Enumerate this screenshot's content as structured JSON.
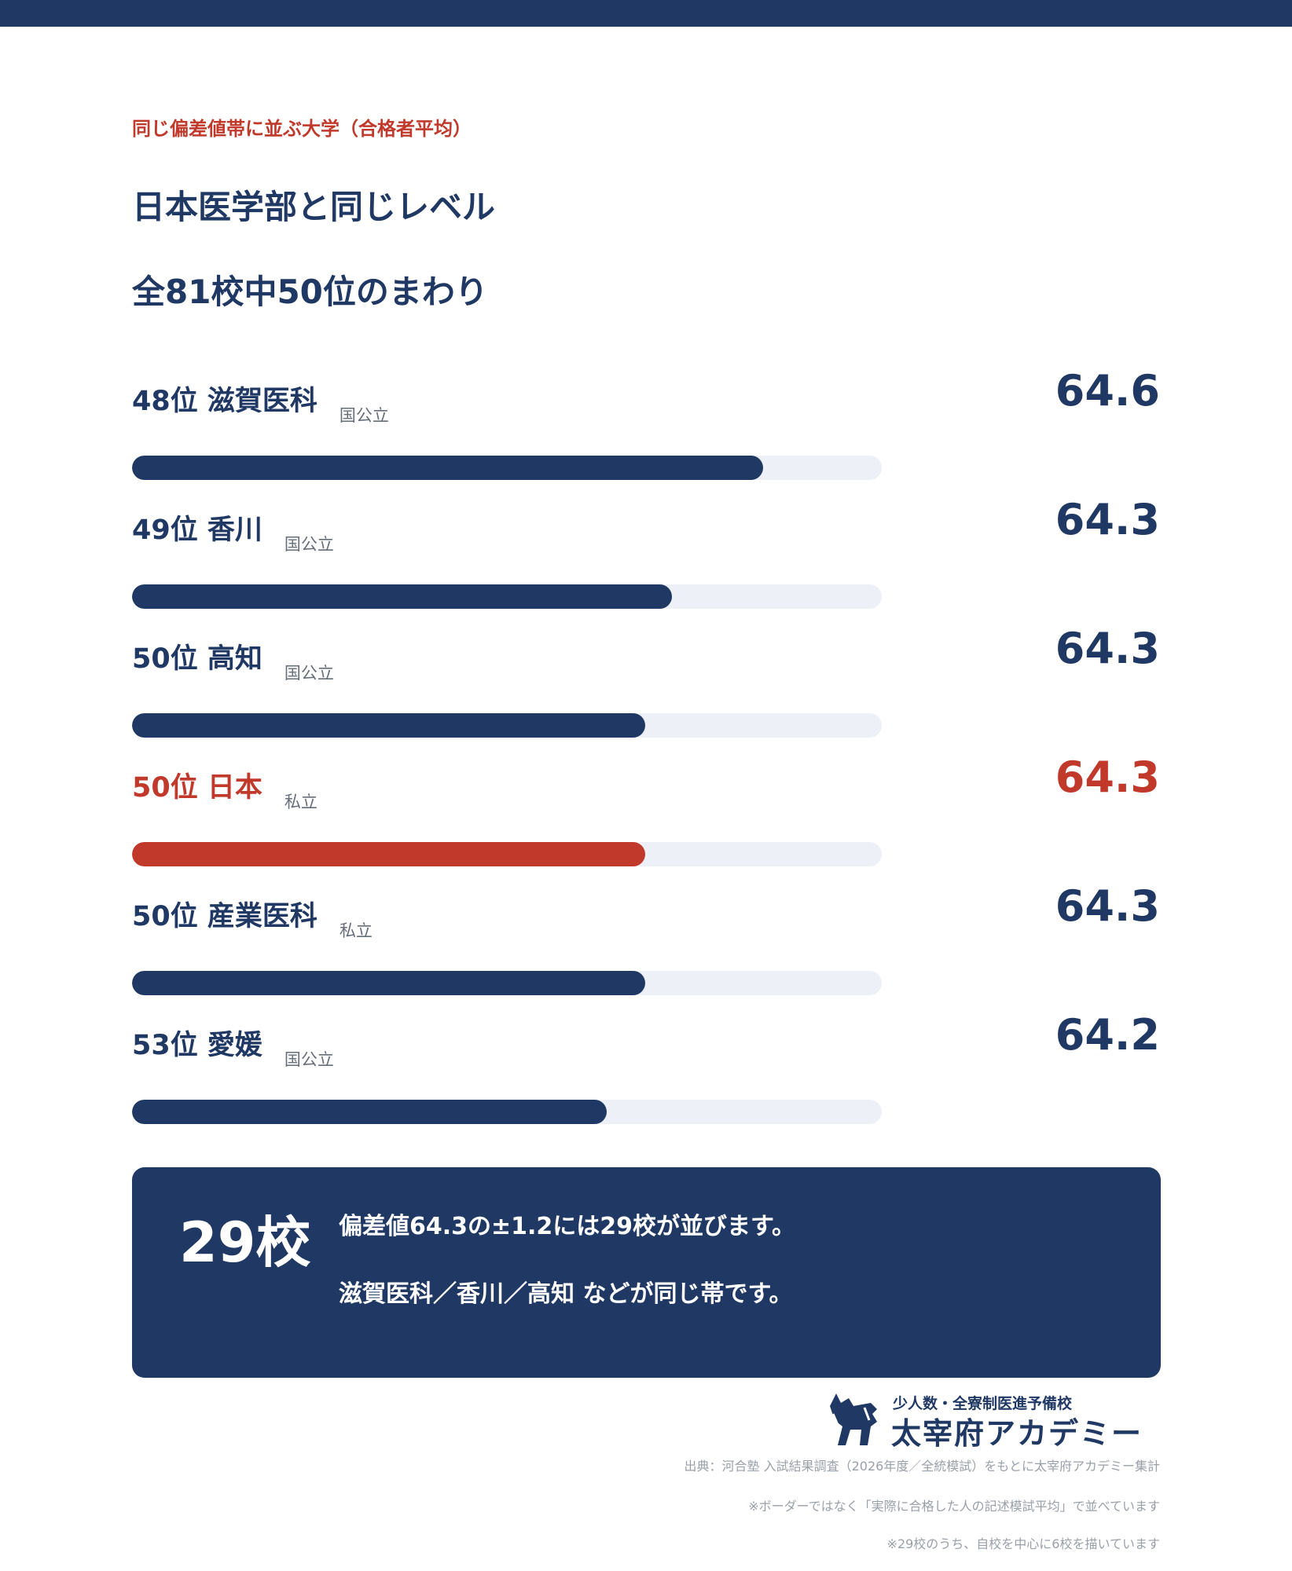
{
  "header": {
    "eyebrow": "同じ偏差値帯に並ぶ大学（合格者平均）",
    "title_line1": "日本医学部と同じレベル",
    "title_line2": "全81校中50位のまわり"
  },
  "colors": {
    "navy": "#203864",
    "highlight": "#c0392b",
    "track": "#edf0f6"
  },
  "chart_data": {
    "type": "bar",
    "orientation": "horizontal",
    "title": "日本医学部と同じレベル",
    "subtitle": "全81校中50位のまわり",
    "scale": {
      "min": 62.2,
      "max": 64.8
    },
    "items": [
      {
        "rank": "48位",
        "name": "滋賀医科",
        "type": "国公立",
        "value": "64.6",
        "highlight": false
      },
      {
        "rank": "49位",
        "name": "香川",
        "type": "国公立",
        "value": "64.3",
        "highlight": false
      },
      {
        "rank": "50位",
        "name": "高知",
        "type": "国公立",
        "value": "64.3",
        "highlight": false
      },
      {
        "rank": "50位",
        "name": "日本",
        "type": "私立",
        "value": "64.3",
        "highlight": true
      },
      {
        "rank": "50位",
        "name": "産業医科",
        "type": "私立",
        "value": "64.3",
        "highlight": false
      },
      {
        "rank": "53位",
        "name": "愛媛",
        "type": "国公立",
        "value": "64.2",
        "highlight": false
      }
    ],
    "fill_fraction": [
      0.842,
      0.72,
      0.685,
      0.685,
      0.685,
      0.633
    ]
  },
  "summary": {
    "count": "29校",
    "line1": "偏差値64.3の±1.2には29校が並びます。",
    "line2": "滋賀医科／香川／高知 などが同じ帯です。"
  },
  "logo": {
    "tagline": "少人数・全寮制医進予備校",
    "name": "太宰府アカデミー",
    "icon": "horse-logo-icon"
  },
  "footnotes": {
    "source": "出典：河合塾 入試結果調査（2026年度／全統模試）をもとに太宰府アカデミー集計",
    "note1": "※ボーダーではなく「実際に合格した人の記述模試平均」で並べています",
    "note2": "※29校のうち、自校を中心に6校を描いています"
  }
}
